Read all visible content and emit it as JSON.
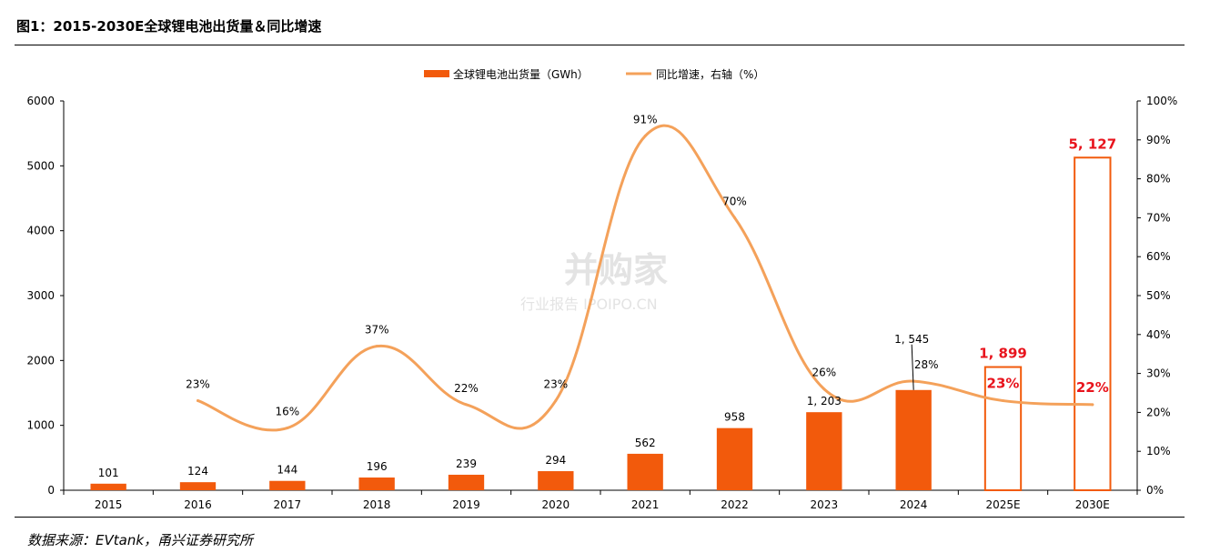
{
  "title": "图1：2015-2030E全球锂电池出货量＆同比增速",
  "source": "数据来源：EVtank，甬兴证券研究所",
  "watermark": {
    "main": "并购家",
    "sub": "行业报告 IPOIPO.CN"
  },
  "colors": {
    "bar": "#f25a0c",
    "line": "#f4a15a",
    "highlight": "#e8141d",
    "axis": "#000000"
  },
  "chart_data": {
    "type": "bar",
    "categories": [
      "2015",
      "2016",
      "2017",
      "2018",
      "2019",
      "2020",
      "2021",
      "2022",
      "2023",
      "2024",
      "2025E",
      "2030E"
    ],
    "series": [
      {
        "name": "全球锂电池出货量（GWh）",
        "type": "bar",
        "axis": "left",
        "values": [
          101,
          124,
          144,
          196,
          239,
          294,
          562,
          958,
          1203,
          1545,
          1899,
          5127
        ],
        "labels": [
          "101",
          "124",
          "144",
          "196",
          "239",
          "294",
          "562",
          "958",
          "1, 203",
          "1, 545",
          "1, 899",
          "5, 127"
        ],
        "forecast": [
          false,
          false,
          false,
          false,
          false,
          false,
          false,
          false,
          false,
          false,
          true,
          true
        ]
      },
      {
        "name": "同比增速，右轴（%）",
        "type": "line",
        "axis": "right",
        "values": [
          null,
          23,
          16,
          37,
          22,
          23,
          91,
          70,
          26,
          28,
          23,
          22
        ],
        "labels": [
          "",
          "23%",
          "16%",
          "37%",
          "22%",
          "23%",
          "91%",
          "70%",
          "26%",
          "28%",
          "23%",
          "22%"
        ]
      }
    ],
    "yleft": {
      "min": 0,
      "max": 6000,
      "ticks": [
        "0",
        "1000",
        "2000",
        "3000",
        "4000",
        "5000",
        "6000"
      ]
    },
    "yright": {
      "min": 0,
      "max": 100,
      "ticks": [
        "0%",
        "10%",
        "20%",
        "30%",
        "40%",
        "50%",
        "60%",
        "70%",
        "80%",
        "90%",
        "100%"
      ]
    },
    "legend": "top-center",
    "grid": false
  }
}
